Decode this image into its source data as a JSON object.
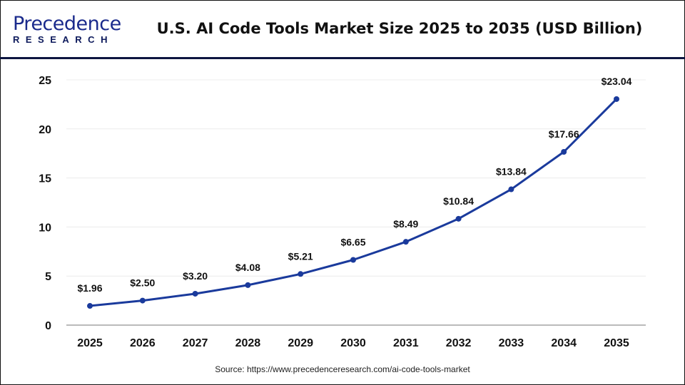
{
  "logo": {
    "text_top": "Precedence",
    "text_bottom": "RESEARCH"
  },
  "title": "U.S. AI Code Tools Market Size 2025 to 2035 (USD Billion)",
  "source": "Source: https://www.precedenceresearch.com/ai-code-tools-market",
  "chart_data": {
    "type": "line",
    "title": "U.S. AI Code Tools Market Size 2025 to 2035 (USD Billion)",
    "categories": [
      "2025",
      "2026",
      "2027",
      "2028",
      "2029",
      "2030",
      "2031",
      "2032",
      "2033",
      "2034",
      "2035"
    ],
    "values": [
      1.96,
      2.5,
      3.2,
      4.08,
      5.21,
      6.65,
      8.49,
      10.84,
      13.84,
      17.66,
      23.04
    ],
    "labels": [
      "$1.96",
      "$2.50",
      "$3.20",
      "$4.08",
      "$5.21",
      "$6.65",
      "$8.49",
      "$10.84",
      "$13.84",
      "$17.66",
      "$23.04"
    ],
    "ylim": [
      0,
      25
    ],
    "yticks": [
      "0",
      "5",
      "10",
      "15",
      "20",
      "25"
    ],
    "grid": true,
    "line_color": "#1a3a9c"
  }
}
